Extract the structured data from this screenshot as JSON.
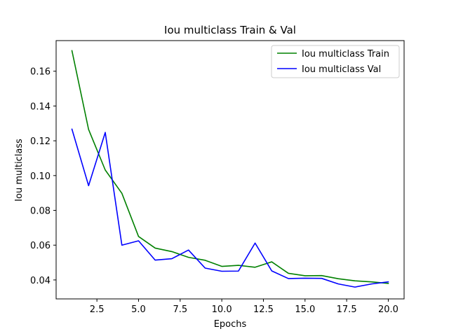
{
  "chart_data": {
    "type": "line",
    "title": "Iou multiclass Train & Val",
    "xlabel": "Epochs",
    "ylabel": "Iou multiclass",
    "xlim": [
      0.05,
      20.95
    ],
    "ylim": [
      0.0291,
      0.1776
    ],
    "xticks": [
      2.5,
      5.0,
      7.5,
      10.0,
      12.5,
      15.0,
      17.5,
      20.0
    ],
    "xtick_labels": [
      "2.5",
      "5.0",
      "7.5",
      "10.0",
      "12.5",
      "15.0",
      "17.5",
      "20.0"
    ],
    "yticks": [
      0.04,
      0.06,
      0.08,
      0.1,
      0.12,
      0.14,
      0.16
    ],
    "ytick_labels": [
      "0.04",
      "0.06",
      "0.08",
      "0.10",
      "0.12",
      "0.14",
      "0.16"
    ],
    "grid": false,
    "legend_position": "top-right",
    "x": [
      1,
      2,
      3,
      4,
      5,
      6,
      7,
      8,
      9,
      10,
      11,
      12,
      13,
      14,
      15,
      16,
      17,
      18,
      19,
      20
    ],
    "series": [
      {
        "name": "Iou multiclass Train",
        "color": "#008000",
        "values": [
          0.1718,
          0.1265,
          0.1032,
          0.0898,
          0.065,
          0.0583,
          0.0563,
          0.053,
          0.0513,
          0.0478,
          0.0484,
          0.0473,
          0.0504,
          0.0438,
          0.0424,
          0.0425,
          0.0407,
          0.0395,
          0.0389,
          0.038
        ]
      },
      {
        "name": "Iou multiclass Val",
        "color": "#0000ff",
        "values": [
          0.1267,
          0.0942,
          0.1248,
          0.06,
          0.0625,
          0.0514,
          0.0522,
          0.0572,
          0.0468,
          0.045,
          0.0451,
          0.0612,
          0.0452,
          0.0408,
          0.041,
          0.0409,
          0.0377,
          0.0359,
          0.0377,
          0.0389
        ]
      }
    ]
  }
}
